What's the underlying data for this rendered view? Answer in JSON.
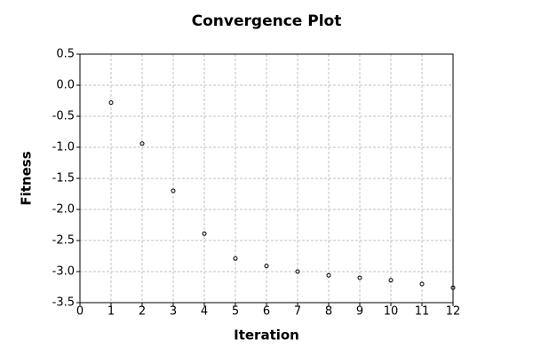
{
  "chart_data": {
    "type": "scatter",
    "title": "Convergence Plot",
    "x_label": "Iteration",
    "y_label": "Fitness",
    "x": [
      1,
      2,
      3,
      4,
      5,
      6,
      7,
      8,
      9,
      10,
      11,
      12
    ],
    "values": [
      -0.28,
      -0.94,
      -1.7,
      -2.39,
      -2.79,
      -2.91,
      -3.0,
      -3.06,
      -3.1,
      -3.14,
      -3.2,
      -3.26
    ],
    "color": "#000000",
    "xlim": [
      0,
      12
    ],
    "xticks": [
      0,
      1,
      2,
      3,
      4,
      5,
      6,
      7,
      8,
      9,
      10,
      11,
      12
    ],
    "ylim": [
      -3.5,
      0.5
    ],
    "yticks": [
      -3.5,
      {
        "value": -3,
        "label": "-3.0"
      },
      -2.5,
      {
        "value": -2,
        "label": "-2.0"
      },
      -1.5,
      {
        "value": -1,
        "label": "-1.0"
      },
      -0.5,
      {
        "value": 0,
        "label": "0.0"
      },
      0.5
    ],
    "grid": true
  }
}
